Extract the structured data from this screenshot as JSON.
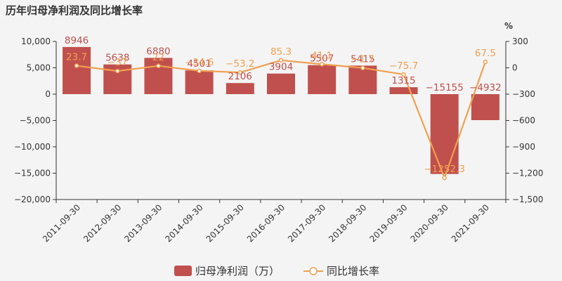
{
  "title": "历年归母净利润及同比增长率",
  "colors": {
    "bar": "#c0504d",
    "line": "#f0a050",
    "axis": "#333333",
    "grid": "#e5e5e5"
  },
  "chart_data": {
    "type": "bar",
    "title": "历年归母净利润及同比增长率",
    "categories": [
      "2011-09-30",
      "2012-09-30",
      "2013-09-30",
      "2014-09-30",
      "2015-09-30",
      "2016-09-30",
      "2017-09-30",
      "2018-09-30",
      "2019-09-30",
      "2020-09-30",
      "2021-09-30"
    ],
    "series": [
      {
        "name": "归母净利润（万）",
        "type": "bar",
        "axis": "left",
        "values": [
          8946,
          5638,
          6880,
          4501,
          2106,
          3904,
          5507,
          5415,
          1315,
          -15155,
          -4932
        ],
        "labels": [
          "8946",
          "5638",
          "6880",
          "4501",
          "2106",
          "3904",
          "5507",
          "5415",
          "1315",
          "−15155",
          "−4932"
        ]
      },
      {
        "name": "同比增长率",
        "type": "line",
        "axis": "right",
        "values": [
          23.7,
          -37,
          22,
          -34.6,
          -53.2,
          85.3,
          41.1,
          -1.7,
          -75.7,
          -1252.3,
          67.5
        ],
        "labels": [
          "23.7",
          "−37",
          "22",
          "−34.6",
          "−53.2",
          "85.3",
          "41.1",
          "−1.7",
          "−75.7",
          "−1252.3",
          "67.5"
        ]
      }
    ],
    "y_left": {
      "ylim": [
        -20000,
        10000
      ],
      "ticks": [
        10000,
        5000,
        0,
        -5000,
        -10000,
        -15000,
        -20000
      ],
      "tick_labels": [
        "10,000",
        "5,000",
        "0",
        "−5,000",
        "−10,000",
        "−15,000",
        "−20,000"
      ]
    },
    "y_right": {
      "unit": "%",
      "ylim": [
        -1500,
        300
      ],
      "ticks": [
        300,
        0,
        -300,
        -600,
        -900,
        -1200,
        -1500
      ],
      "tick_labels": [
        "300",
        "0",
        "−300",
        "−600",
        "−900",
        "−1,200",
        "−1,500"
      ]
    },
    "legend": {
      "position": "bottom",
      "items": [
        "归母净利润（万）",
        "同比增长率"
      ]
    },
    "grid": false
  }
}
